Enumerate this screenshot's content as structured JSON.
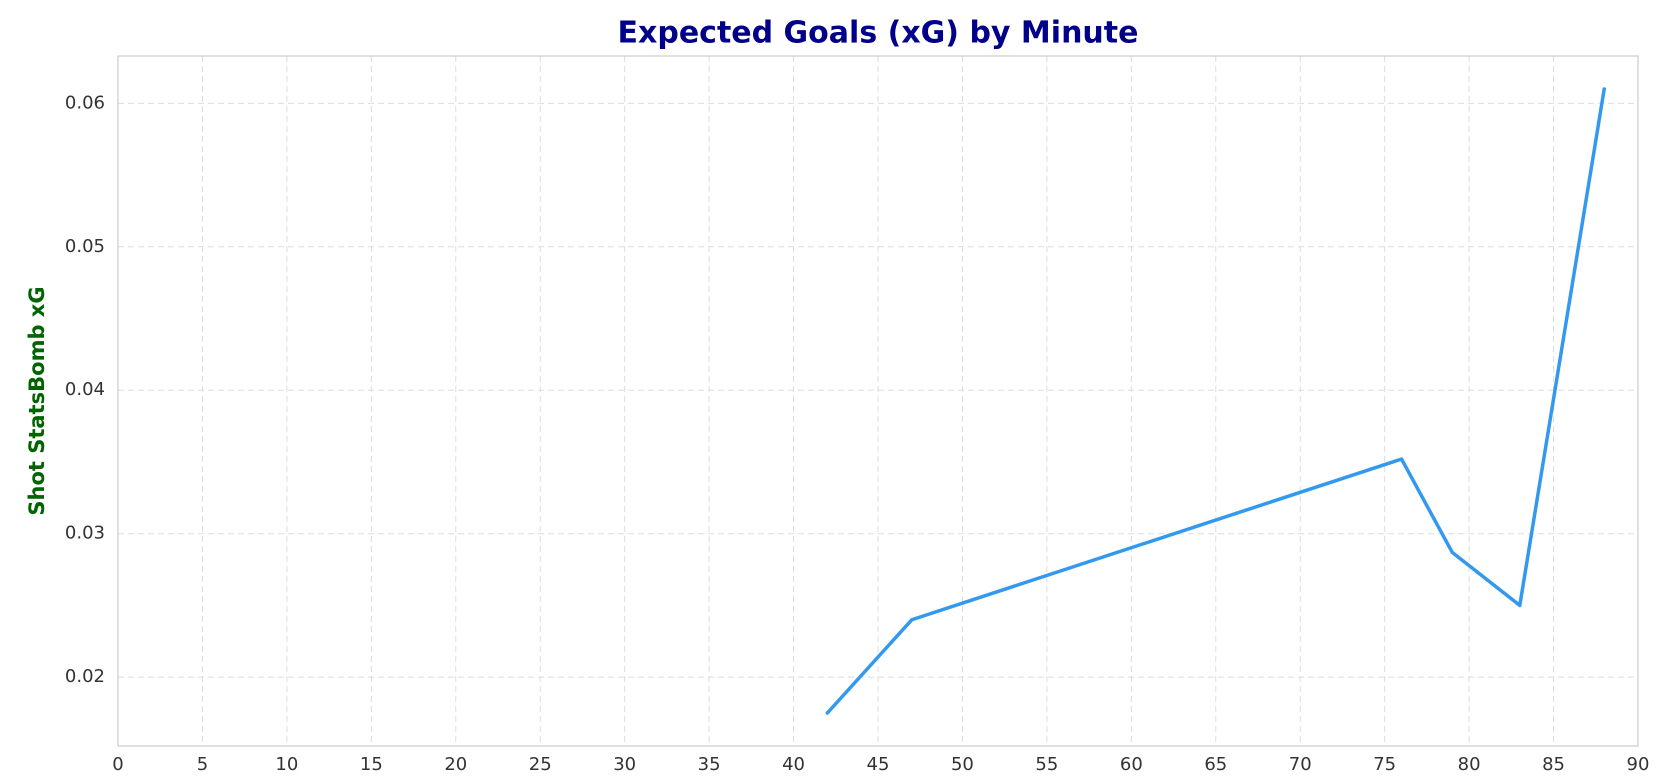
{
  "chart_data": {
    "type": "line",
    "title": "Expected Goals (xG) by Minute",
    "xlabel": "",
    "ylabel": "Shot StatsBomb xG",
    "xlim": [
      0,
      90
    ],
    "ylim": [
      0.0152,
      0.0633
    ],
    "xticks": [
      0,
      5,
      10,
      15,
      20,
      25,
      30,
      35,
      40,
      45,
      50,
      55,
      60,
      65,
      70,
      75,
      80,
      85,
      90
    ],
    "yticks": [
      0.02,
      0.03,
      0.04,
      0.05,
      0.06
    ],
    "ytick_labels": [
      "0.02",
      "0.03",
      "0.04",
      "0.05",
      "0.06"
    ],
    "grid": true,
    "legend": "none",
    "colors": {
      "line": "#3399ee",
      "title": "#00008b",
      "ylabel": "#006400",
      "grid": "#dddddd",
      "axes": "#cccccc",
      "tick_text": "#333333"
    },
    "series": [
      {
        "x": [
          42,
          47,
          76,
          79,
          83,
          88
        ],
        "y": [
          0.0175,
          0.024,
          0.0352,
          0.0287,
          0.025,
          0.061
        ]
      }
    ]
  }
}
